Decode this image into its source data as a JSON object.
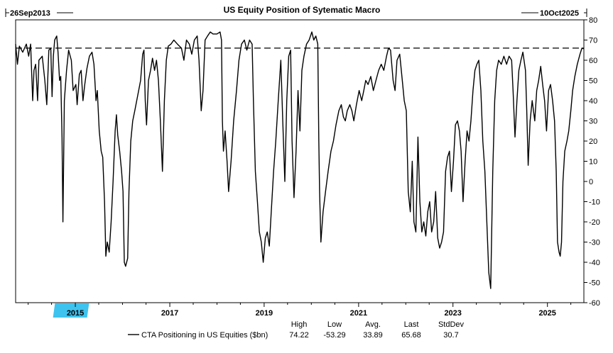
{
  "chart_data": {
    "type": "line",
    "title": "US Equity Position of Sytematic Macro",
    "start_label": "26Sep2013",
    "end_label": "10Oct2025",
    "xlabel": "",
    "ylabel": "",
    "x_range": [
      "2013-09-26",
      "2025-10-10"
    ],
    "ylim": [
      -60,
      80
    ],
    "y_ticks": [
      80,
      70,
      60,
      50,
      40,
      30,
      20,
      10,
      0,
      -10,
      -20,
      -30,
      -40,
      -50,
      -60
    ],
    "x_ticks": [
      "2015",
      "2017",
      "2019",
      "2021",
      "2023",
      "2025"
    ],
    "highlighted_tick": "2015",
    "highlight_color": "#3ec3ee",
    "reference_line": {
      "value": 66,
      "style": "dashed"
    },
    "grid": false,
    "legend": {
      "placement": "bottom-left",
      "headers": [
        "High",
        "Low",
        "Avg.",
        "Last",
        "StdDev"
      ],
      "series_name": "CTA Positioning in US Equities ($bn)",
      "stats": [
        "74.22",
        "-53.29",
        "33.89",
        "65.68",
        "30.7"
      ]
    },
    "series": [
      {
        "name": "CTA Positioning in US Equities ($bn)",
        "color": "#000000",
        "points": [
          [
            "2013-09-26",
            68
          ],
          [
            "2013-10-10",
            58
          ],
          [
            "2013-10-25",
            67
          ],
          [
            "2013-11-20",
            64
          ],
          [
            "2013-12-18",
            68
          ],
          [
            "2014-01-05",
            62
          ],
          [
            "2014-01-20",
            68
          ],
          [
            "2014-02-05",
            40
          ],
          [
            "2014-02-15",
            55
          ],
          [
            "2014-02-28",
            58
          ],
          [
            "2014-03-15",
            40
          ],
          [
            "2014-03-25",
            60
          ],
          [
            "2014-04-20",
            62
          ],
          [
            "2014-05-10",
            50
          ],
          [
            "2014-05-25",
            38
          ],
          [
            "2014-06-10",
            65
          ],
          [
            "2014-06-25",
            66
          ],
          [
            "2014-07-05",
            42
          ],
          [
            "2014-07-15",
            62
          ],
          [
            "2014-07-25",
            70
          ],
          [
            "2014-08-10",
            72
          ],
          [
            "2014-08-20",
            64
          ],
          [
            "2014-09-01",
            50
          ],
          [
            "2014-09-10",
            52
          ],
          [
            "2014-09-20",
            22
          ],
          [
            "2014-09-27",
            -20
          ],
          [
            "2014-10-08",
            40
          ],
          [
            "2014-10-25",
            55
          ],
          [
            "2014-11-10",
            65
          ],
          [
            "2014-12-01",
            60
          ],
          [
            "2014-12-15",
            45
          ],
          [
            "2015-01-05",
            48
          ],
          [
            "2015-01-15",
            38
          ],
          [
            "2015-02-01",
            53
          ],
          [
            "2015-02-15",
            55
          ],
          [
            "2015-03-01",
            40
          ],
          [
            "2015-03-15",
            48
          ],
          [
            "2015-04-01",
            56
          ],
          [
            "2015-04-20",
            62
          ],
          [
            "2015-05-10",
            64
          ],
          [
            "2015-05-25",
            58
          ],
          [
            "2015-06-10",
            40
          ],
          [
            "2015-06-20",
            45
          ],
          [
            "2015-07-05",
            25
          ],
          [
            "2015-07-20",
            15
          ],
          [
            "2015-08-01",
            12
          ],
          [
            "2015-08-15",
            -10
          ],
          [
            "2015-08-25",
            -37
          ],
          [
            "2015-09-05",
            -30
          ],
          [
            "2015-09-20",
            -35
          ],
          [
            "2015-10-05",
            -20
          ],
          [
            "2015-10-20",
            0
          ],
          [
            "2015-11-05",
            25
          ],
          [
            "2015-11-15",
            33
          ],
          [
            "2015-11-25",
            23
          ],
          [
            "2015-12-10",
            15
          ],
          [
            "2015-12-25",
            5
          ],
          [
            "2016-01-05",
            -5
          ],
          [
            "2016-01-15",
            -40
          ],
          [
            "2016-01-25",
            -42
          ],
          [
            "2016-02-10",
            -38
          ],
          [
            "2016-02-20",
            -5
          ],
          [
            "2016-03-05",
            20
          ],
          [
            "2016-03-20",
            30
          ],
          [
            "2016-04-05",
            35
          ],
          [
            "2016-04-20",
            40
          ],
          [
            "2016-05-05",
            45
          ],
          [
            "2016-05-20",
            50
          ],
          [
            "2016-06-05",
            63
          ],
          [
            "2016-06-15",
            65
          ],
          [
            "2016-06-25",
            40
          ],
          [
            "2016-07-05",
            28
          ],
          [
            "2016-07-20",
            50
          ],
          [
            "2016-08-05",
            55
          ],
          [
            "2016-08-20",
            61
          ],
          [
            "2016-09-05",
            55
          ],
          [
            "2016-09-20",
            60
          ],
          [
            "2016-10-05",
            50
          ],
          [
            "2016-10-20",
            30
          ],
          [
            "2016-11-05",
            5
          ],
          [
            "2016-11-20",
            40
          ],
          [
            "2016-12-05",
            60
          ],
          [
            "2016-12-20",
            67
          ],
          [
            "2017-01-10",
            68
          ],
          [
            "2017-02-01",
            70
          ],
          [
            "2017-03-01",
            68
          ],
          [
            "2017-04-01",
            66
          ],
          [
            "2017-04-20",
            60
          ],
          [
            "2017-05-10",
            70
          ],
          [
            "2017-06-01",
            68
          ],
          [
            "2017-06-20",
            63
          ],
          [
            "2017-07-10",
            70
          ],
          [
            "2017-08-01",
            72
          ],
          [
            "2017-08-15",
            60
          ],
          [
            "2017-09-01",
            35
          ],
          [
            "2017-09-15",
            45
          ],
          [
            "2017-10-01",
            70
          ],
          [
            "2017-10-20",
            72
          ],
          [
            "2017-11-10",
            74
          ],
          [
            "2017-12-01",
            73
          ],
          [
            "2018-01-01",
            73
          ],
          [
            "2018-01-25",
            74
          ],
          [
            "2018-02-05",
            70
          ],
          [
            "2018-02-12",
            30
          ],
          [
            "2018-02-20",
            15
          ],
          [
            "2018-03-05",
            25
          ],
          [
            "2018-03-20",
            10
          ],
          [
            "2018-04-01",
            -5
          ],
          [
            "2018-04-20",
            10
          ],
          [
            "2018-05-10",
            30
          ],
          [
            "2018-06-01",
            45
          ],
          [
            "2018-06-20",
            60
          ],
          [
            "2018-07-10",
            68
          ],
          [
            "2018-08-01",
            70
          ],
          [
            "2018-08-20",
            65
          ],
          [
            "2018-09-10",
            70
          ],
          [
            "2018-09-30",
            68
          ],
          [
            "2018-10-10",
            40
          ],
          [
            "2018-10-25",
            5
          ],
          [
            "2018-11-10",
            -10
          ],
          [
            "2018-11-25",
            -25
          ],
          [
            "2018-12-10",
            -30
          ],
          [
            "2018-12-25",
            -40
          ],
          [
            "2019-01-10",
            -28
          ],
          [
            "2019-01-25",
            -25
          ],
          [
            "2019-02-10",
            -32
          ],
          [
            "2019-02-25",
            -15
          ],
          [
            "2019-03-15",
            5
          ],
          [
            "2019-04-01",
            20
          ],
          [
            "2019-04-20",
            40
          ],
          [
            "2019-05-10",
            60
          ],
          [
            "2019-05-25",
            30
          ],
          [
            "2019-06-10",
            0
          ],
          [
            "2019-06-25",
            40
          ],
          [
            "2019-07-10",
            62
          ],
          [
            "2019-07-25",
            65
          ],
          [
            "2019-08-05",
            20
          ],
          [
            "2019-08-20",
            -8
          ],
          [
            "2019-09-05",
            15
          ],
          [
            "2019-09-20",
            45
          ],
          [
            "2019-10-05",
            25
          ],
          [
            "2019-10-20",
            55
          ],
          [
            "2019-11-05",
            62
          ],
          [
            "2019-11-25",
            68
          ],
          [
            "2019-12-15",
            70
          ],
          [
            "2020-01-05",
            74
          ],
          [
            "2020-01-20",
            70
          ],
          [
            "2020-02-05",
            72
          ],
          [
            "2020-02-20",
            68
          ],
          [
            "2020-02-28",
            20
          ],
          [
            "2020-03-05",
            -5
          ],
          [
            "2020-03-15",
            -30
          ],
          [
            "2020-04-01",
            -15
          ],
          [
            "2020-04-20",
            -5
          ],
          [
            "2020-05-10",
            5
          ],
          [
            "2020-06-01",
            15
          ],
          [
            "2020-06-20",
            20
          ],
          [
            "2020-07-10",
            28
          ],
          [
            "2020-08-01",
            35
          ],
          [
            "2020-08-20",
            38
          ],
          [
            "2020-09-05",
            32
          ],
          [
            "2020-09-20",
            30
          ],
          [
            "2020-10-05",
            35
          ],
          [
            "2020-10-25",
            38
          ],
          [
            "2020-11-10",
            35
          ],
          [
            "2020-11-25",
            30
          ],
          [
            "2020-12-15",
            38
          ],
          [
            "2021-01-05",
            45
          ],
          [
            "2021-01-25",
            40
          ],
          [
            "2021-02-10",
            45
          ],
          [
            "2021-02-25",
            50
          ],
          [
            "2021-03-15",
            48
          ],
          [
            "2021-04-05",
            52
          ],
          [
            "2021-04-25",
            45
          ],
          [
            "2021-05-15",
            50
          ],
          [
            "2021-06-05",
            55
          ],
          [
            "2021-06-25",
            58
          ],
          [
            "2021-07-15",
            55
          ],
          [
            "2021-08-05",
            62
          ],
          [
            "2021-08-20",
            66
          ],
          [
            "2021-09-05",
            65
          ],
          [
            "2021-09-25",
            50
          ],
          [
            "2021-10-10",
            45
          ],
          [
            "2021-10-25",
            60
          ],
          [
            "2021-11-15",
            63
          ],
          [
            "2021-12-05",
            50
          ],
          [
            "2021-12-20",
            40
          ],
          [
            "2022-01-05",
            35
          ],
          [
            "2022-01-20",
            -5
          ],
          [
            "2022-02-05",
            -15
          ],
          [
            "2022-02-20",
            10
          ],
          [
            "2022-03-05",
            -20
          ],
          [
            "2022-03-20",
            -25
          ],
          [
            "2022-04-05",
            22
          ],
          [
            "2022-04-20",
            -10
          ],
          [
            "2022-05-05",
            -25
          ],
          [
            "2022-05-20",
            -20
          ],
          [
            "2022-06-05",
            -27
          ],
          [
            "2022-06-20",
            -15
          ],
          [
            "2022-07-05",
            -10
          ],
          [
            "2022-07-20",
            -25
          ],
          [
            "2022-08-05",
            -20
          ],
          [
            "2022-08-20",
            -5
          ],
          [
            "2022-09-05",
            -28
          ],
          [
            "2022-09-20",
            -33
          ],
          [
            "2022-10-05",
            -30
          ],
          [
            "2022-10-20",
            -25
          ],
          [
            "2022-11-05",
            5
          ],
          [
            "2022-11-20",
            12
          ],
          [
            "2022-12-05",
            15
          ],
          [
            "2022-12-20",
            -5
          ],
          [
            "2023-01-05",
            10
          ],
          [
            "2023-01-20",
            28
          ],
          [
            "2023-02-05",
            30
          ],
          [
            "2023-02-20",
            25
          ],
          [
            "2023-03-05",
            15
          ],
          [
            "2023-03-20",
            -10
          ],
          [
            "2023-04-05",
            10
          ],
          [
            "2023-04-20",
            25
          ],
          [
            "2023-05-05",
            20
          ],
          [
            "2023-05-20",
            30
          ],
          [
            "2023-06-05",
            45
          ],
          [
            "2023-06-20",
            55
          ],
          [
            "2023-07-05",
            58
          ],
          [
            "2023-07-20",
            60
          ],
          [
            "2023-08-05",
            45
          ],
          [
            "2023-08-20",
            20
          ],
          [
            "2023-09-05",
            5
          ],
          [
            "2023-09-20",
            -20
          ],
          [
            "2023-10-05",
            -45
          ],
          [
            "2023-10-20",
            -53
          ],
          [
            "2023-11-05",
            5
          ],
          [
            "2023-11-20",
            40
          ],
          [
            "2023-12-05",
            55
          ],
          [
            "2023-12-20",
            60
          ],
          [
            "2024-01-10",
            58
          ],
          [
            "2024-01-30",
            62
          ],
          [
            "2024-02-20",
            58
          ],
          [
            "2024-03-10",
            62
          ],
          [
            "2024-03-30",
            60
          ],
          [
            "2024-04-10",
            45
          ],
          [
            "2024-04-25",
            22
          ],
          [
            "2024-05-10",
            40
          ],
          [
            "2024-05-25",
            55
          ],
          [
            "2024-06-10",
            60
          ],
          [
            "2024-06-25",
            64
          ],
          [
            "2024-07-15",
            55
          ],
          [
            "2024-07-25",
            35
          ],
          [
            "2024-08-05",
            8
          ],
          [
            "2024-08-20",
            30
          ],
          [
            "2024-09-05",
            40
          ],
          [
            "2024-09-25",
            30
          ],
          [
            "2024-10-10",
            45
          ],
          [
            "2024-10-25",
            50
          ],
          [
            "2024-11-10",
            57
          ],
          [
            "2024-11-25",
            48
          ],
          [
            "2024-12-10",
            40
          ],
          [
            "2024-12-25",
            25
          ],
          [
            "2025-01-10",
            45
          ],
          [
            "2025-01-25",
            48
          ],
          [
            "2025-02-10",
            40
          ],
          [
            "2025-02-25",
            30
          ],
          [
            "2025-03-10",
            5
          ],
          [
            "2025-03-20",
            -30
          ],
          [
            "2025-04-01",
            -35
          ],
          [
            "2025-04-10",
            -37
          ],
          [
            "2025-04-20",
            -30
          ],
          [
            "2025-05-01",
            0
          ],
          [
            "2025-05-15",
            15
          ],
          [
            "2025-06-01",
            20
          ],
          [
            "2025-06-15",
            25
          ],
          [
            "2025-07-01",
            35
          ],
          [
            "2025-07-15",
            45
          ],
          [
            "2025-08-01",
            52
          ],
          [
            "2025-08-20",
            58
          ],
          [
            "2025-09-10",
            63
          ],
          [
            "2025-09-25",
            66
          ],
          [
            "2025-10-10",
            65.68
          ]
        ]
      }
    ]
  }
}
